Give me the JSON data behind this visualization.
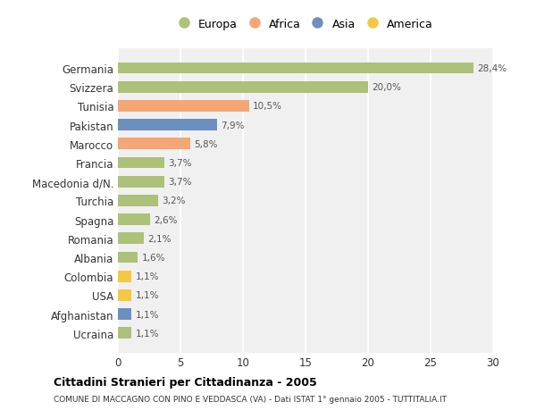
{
  "categories": [
    "Germania",
    "Svizzera",
    "Tunisia",
    "Pakistan",
    "Marocco",
    "Francia",
    "Macedonia d/N.",
    "Turchia",
    "Spagna",
    "Romania",
    "Albania",
    "Colombia",
    "USA",
    "Afghanistan",
    "Ucraina"
  ],
  "values": [
    28.4,
    20.0,
    10.5,
    7.9,
    5.8,
    3.7,
    3.7,
    3.2,
    2.6,
    2.1,
    1.6,
    1.1,
    1.1,
    1.1,
    1.1
  ],
  "labels": [
    "28,4%",
    "20,0%",
    "10,5%",
    "7,9%",
    "5,8%",
    "3,7%",
    "3,7%",
    "3,2%",
    "2,6%",
    "2,1%",
    "1,6%",
    "1,1%",
    "1,1%",
    "1,1%",
    "1,1%"
  ],
  "continents": [
    "Europa",
    "Europa",
    "Africa",
    "Asia",
    "Africa",
    "Europa",
    "Europa",
    "Europa",
    "Europa",
    "Europa",
    "Europa",
    "America",
    "America",
    "Asia",
    "Europa"
  ],
  "colors": {
    "Europa": "#adc178",
    "Africa": "#f4a675",
    "Asia": "#6d8fbf",
    "America": "#f5c842"
  },
  "background_color": "#ffffff",
  "plot_background": "#f0f0f0",
  "grid_color": "#ffffff",
  "title": "Cittadini Stranieri per Cittadinanza - 2005",
  "subtitle": "COMUNE DI MACCAGNO CON PINO E VEDDASCA (VA) - Dati ISTAT 1° gennaio 2005 - TUTTITALIA.IT",
  "xlim": [
    0,
    30
  ],
  "xticks": [
    0,
    5,
    10,
    15,
    20,
    25,
    30
  ],
  "bar_height": 0.6,
  "figsize": [
    6.0,
    4.6
  ],
  "dpi": 100,
  "legend_entries": [
    "Europa",
    "Africa",
    "Asia",
    "America"
  ]
}
